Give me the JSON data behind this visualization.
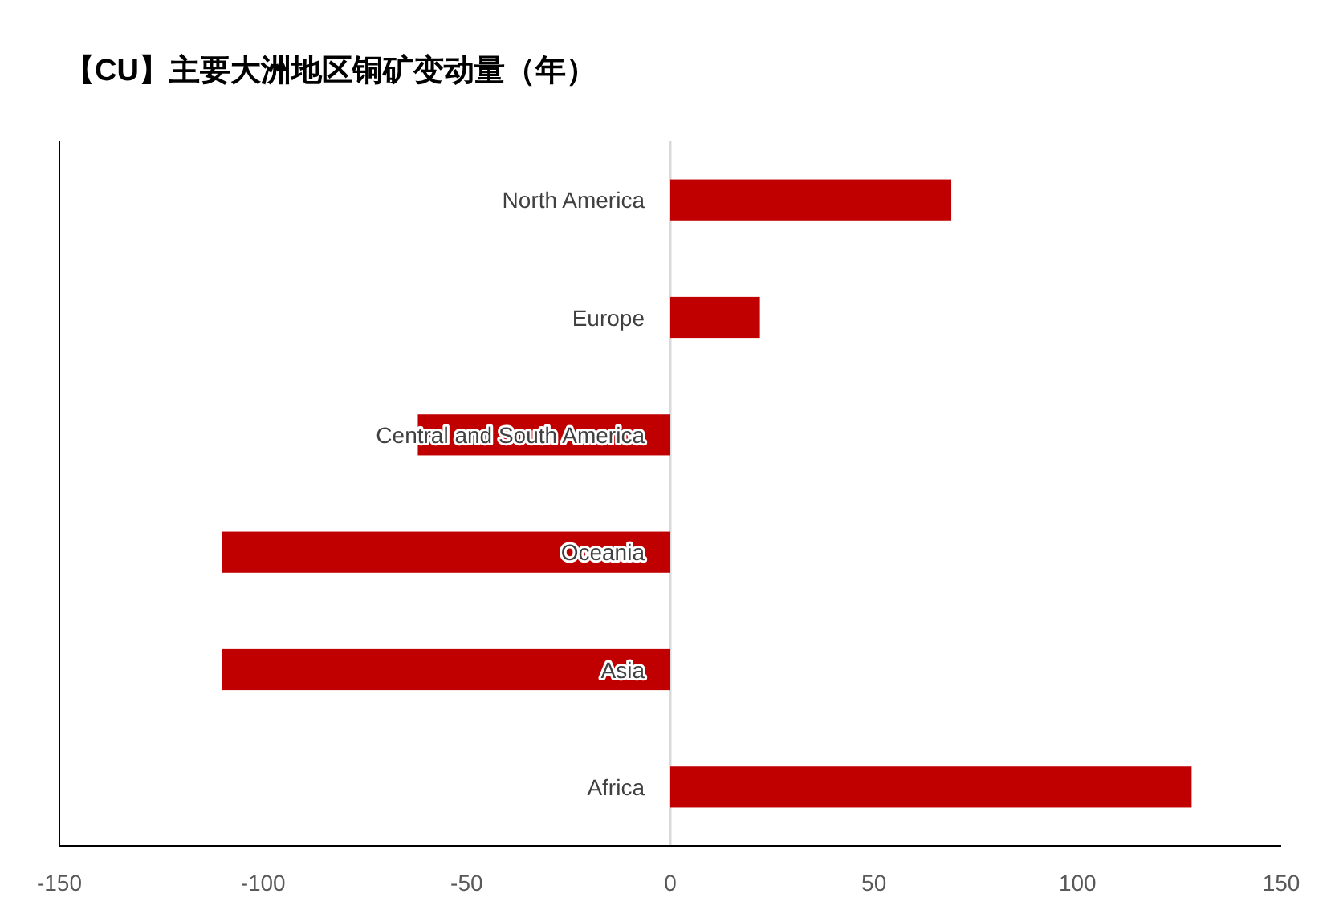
{
  "chart_data": {
    "type": "bar",
    "orientation": "horizontal",
    "title": "【CU】主要大洲地区铜矿变动量（年）",
    "categories": [
      "North America",
      "Europe",
      "Central and South America",
      "Oceania",
      "Asia",
      "Africa"
    ],
    "values": [
      69,
      22,
      -62,
      -110,
      -110,
      128
    ],
    "color": "#c00000",
    "xlim": [
      -150,
      150
    ],
    "xticks": [
      -150,
      -100,
      -50,
      0,
      50,
      100,
      150
    ],
    "grid": false
  }
}
